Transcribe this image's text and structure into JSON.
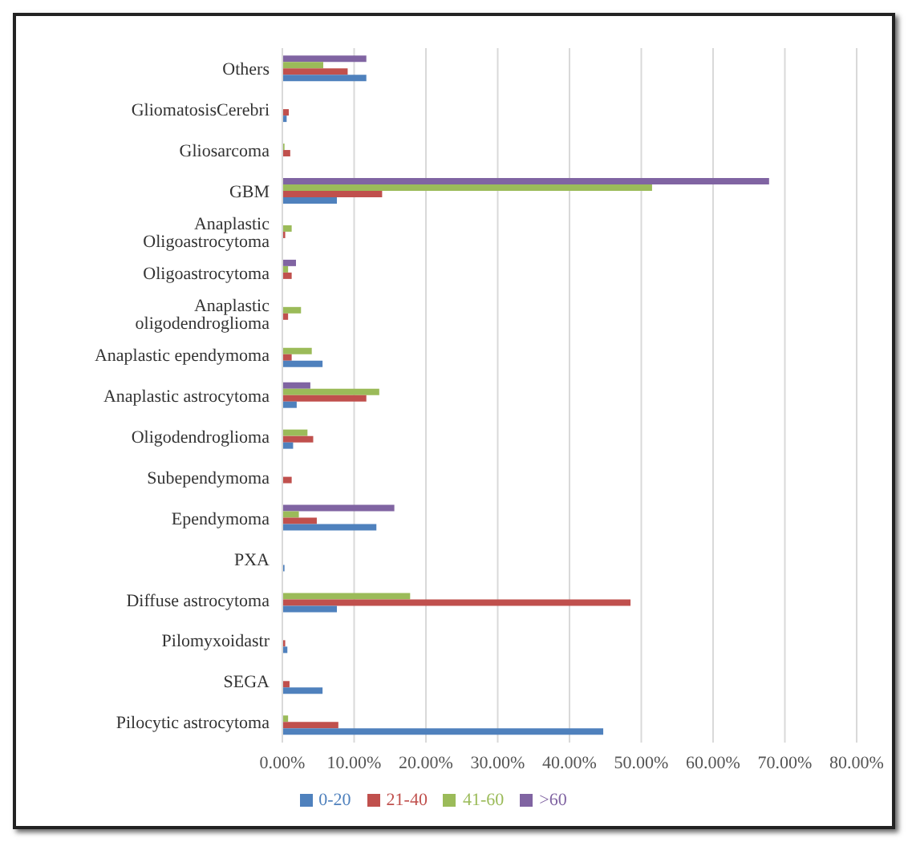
{
  "chart_data": {
    "type": "bar",
    "orientation": "horizontal",
    "categories": [
      "Others",
      "GliomatosisCerebri",
      "Gliosarcoma",
      "GBM",
      "Anaplastic Oligoastrocytoma",
      "Oligoastrocytoma",
      "Anaplastic oligodendroglioma",
      "Anaplastic ependymoma",
      "Anaplastic astrocytoma",
      "Oligodendroglioma",
      "Subependymoma",
      "Ependymoma",
      "PXA",
      "Diffuse astrocytoma",
      "Pilomyxoidastr",
      "SEGA",
      "Pilocytic astrocytoma"
    ],
    "series": [
      {
        "name": ">60",
        "color": "#8064a2",
        "values": [
          11.7,
          null,
          null,
          67.8,
          null,
          1.9,
          null,
          null,
          3.9,
          null,
          null,
          15.6,
          null,
          null,
          null,
          null,
          null
        ]
      },
      {
        "name": "41-60",
        "color": "#9bbb59",
        "values": [
          5.7,
          null,
          0.3,
          51.5,
          1.3,
          0.8,
          2.6,
          4.1,
          13.5,
          3.5,
          null,
          2.3,
          null,
          17.8,
          null,
          null,
          0.8
        ]
      },
      {
        "name": "21-40",
        "color": "#c0504d",
        "values": [
          9.1,
          0.9,
          1.1,
          13.9,
          0.4,
          1.3,
          0.8,
          1.3,
          11.7,
          4.3,
          1.3,
          4.8,
          null,
          48.5,
          0.4,
          1.0,
          7.8
        ]
      },
      {
        "name": "0-20",
        "color": "#4f81bd",
        "values": [
          11.7,
          0.6,
          null,
          7.6,
          null,
          null,
          null,
          5.6,
          2.0,
          1.5,
          null,
          13.1,
          0.3,
          7.6,
          0.7,
          5.6,
          44.7
        ]
      }
    ],
    "xlim": [
      0,
      80
    ],
    "xticks": [
      {
        "value": 0,
        "label": "0.00%"
      },
      {
        "value": 10,
        "label": "10.00%"
      },
      {
        "value": 20,
        "label": "20.00%"
      },
      {
        "value": 30,
        "label": "30.00%"
      },
      {
        "value": 40,
        "label": "40.00%"
      },
      {
        "value": 50,
        "label": "50.00%"
      },
      {
        "value": 60,
        "label": "60.00%"
      },
      {
        "value": 70,
        "label": "70.00%"
      },
      {
        "value": 80,
        "label": "80.00%"
      }
    ],
    "grid": "x",
    "legend": "bottom"
  }
}
